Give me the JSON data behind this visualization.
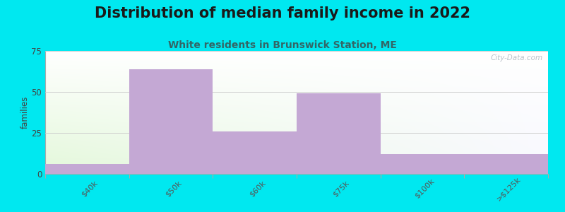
{
  "title": "Distribution of median family income in 2022",
  "subtitle": "White residents in Brunswick Station, ME",
  "categories": [
    "$40k",
    "$50k",
    "$60k",
    "$75k",
    "$100k",
    ">$125k"
  ],
  "values": [
    6,
    64,
    26,
    49,
    12,
    12
  ],
  "bar_color": "#c4a8d4",
  "background_color": "#00e8f0",
  "ylabel": "families",
  "ylim": [
    0,
    75
  ],
  "yticks": [
    0,
    25,
    50,
    75
  ],
  "title_fontsize": 15,
  "subtitle_fontsize": 10,
  "watermark": "City-Data.com"
}
